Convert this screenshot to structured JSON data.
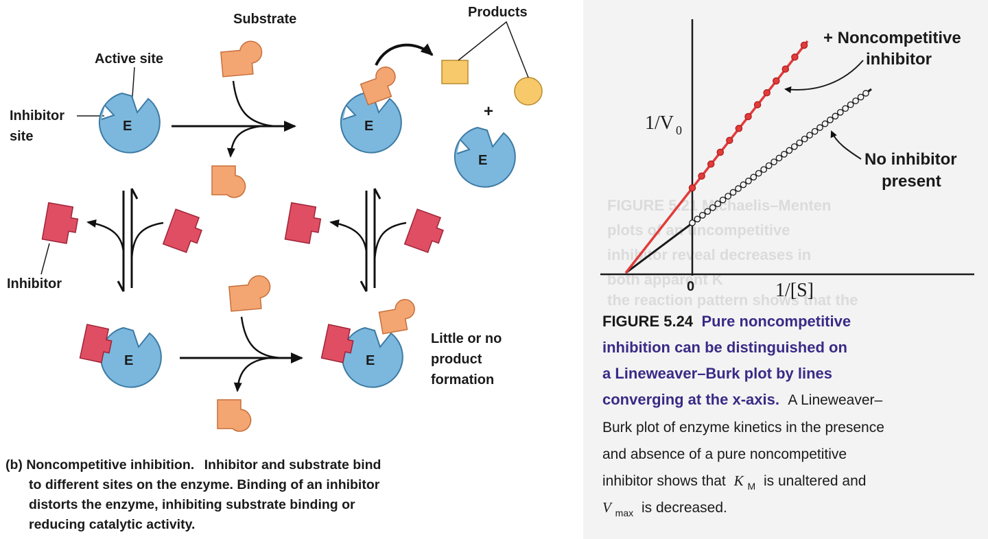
{
  "diagram": {
    "labels": {
      "substrate": "Substrate",
      "products": "Products",
      "active_site": "Active site",
      "inhibitor_site_1": "Inhibitor",
      "inhibitor_site_2": "site",
      "enzyme": "E",
      "plus": "+",
      "inhibitor": "Inhibitor",
      "little_1": "Little or no",
      "little_2": "product",
      "little_3": "formation"
    },
    "caption": {
      "lead": "(b) Noncompetitive inhibition.",
      "line1": "Inhibitor and substrate bind",
      "line2": "to different sites on the enzyme. Binding of an inhibitor",
      "line3": "distorts the enzyme, inhibiting substrate binding or",
      "line4": "reducing catalytic activity."
    },
    "colors": {
      "enzyme": "#7cb8de",
      "substrate": "#f4a672",
      "inhibitor": "#e04e63",
      "product_square": "#f7c96a",
      "product_circle": "#f7c96a"
    }
  },
  "plot": {
    "ylabel": "1/V",
    "ylabel_sub": "0",
    "xlabel": "1/[S]",
    "origin_label": "0",
    "annot_inhib_1": "+ Noncompetitive",
    "annot_inhib_2": "inhibitor",
    "annot_none_1": "No inhibitor",
    "annot_none_2": "present",
    "colors": {
      "inhibited": "#e23b3b",
      "uninhibited": "#1a1a1a",
      "panel_bg": "#f2f2f2"
    }
  },
  "figure": {
    "number": "FIGURE 5.24",
    "title_1": "Pure noncompetitive",
    "title_2": "inhibition can be distinguished on",
    "title_3": "a Lineweaver–Burk plot by lines",
    "title_4": "converging at the x-axis.",
    "body_1": "A Lineweaver–",
    "body_2": "Burk plot of enzyme kinetics in the presence",
    "body_3": "and absence of a pure noncompetitive",
    "body_4a": "inhibitor shows that",
    "body_4b": "K",
    "body_4c": "M",
    "body_4d": "is unaltered and",
    "body_5a": "V",
    "body_5b": "max",
    "body_5c": "is decreased."
  },
  "background_ghost": {
    "g1": "FIGURE 5.21 Michaelis–Menten",
    "g2": "plots of an uncompetitive",
    "g3": "inhibitor reveal decreases in",
    "g4": "both apparent K",
    "g5": "the reaction pattern shows that the"
  }
}
